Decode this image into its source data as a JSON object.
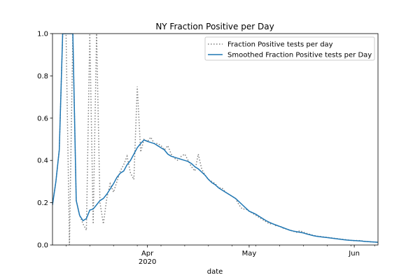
{
  "chart_data": {
    "type": "line",
    "title": "NY Fraction Positive per Day",
    "xlabel": "date",
    "ylabel": "",
    "x_start": "2020-03-04",
    "x_end": "2020-06-08",
    "ylim": [
      0,
      1.0
    ],
    "yticks": [
      0.0,
      0.2,
      0.4,
      0.6,
      0.8,
      1.0
    ],
    "ytick_labels": [
      "0.0",
      "0.2",
      "0.4",
      "0.6",
      "0.8",
      "1.0"
    ],
    "xticks": [
      {
        "date": "2020-04-01",
        "label": "Apr",
        "sublabel": "2020"
      },
      {
        "date": "2020-05-01",
        "label": "May",
        "sublabel": ""
      },
      {
        "date": "2020-06-01",
        "label": "Jun",
        "sublabel": ""
      }
    ],
    "grid": false,
    "legend_position": "top-right",
    "series": [
      {
        "name": "Fraction Positive tests per day",
        "style": "dotted",
        "color": "#7f7f7f",
        "points": [
          [
            "2020-03-04",
            0.19
          ],
          [
            "2020-03-05",
            0.3
          ],
          [
            "2020-03-06",
            0.45
          ],
          [
            "2020-03-07",
            1.0
          ],
          [
            "2020-03-08",
            1.0
          ],
          [
            "2020-03-09",
            0.0
          ],
          [
            "2020-03-10",
            1.0
          ],
          [
            "2020-03-11",
            0.21
          ],
          [
            "2020-03-12",
            0.14
          ],
          [
            "2020-03-13",
            0.1
          ],
          [
            "2020-03-14",
            0.07
          ],
          [
            "2020-03-15",
            1.0
          ],
          [
            "2020-03-16",
            0.1
          ],
          [
            "2020-03-17",
            1.0
          ],
          [
            "2020-03-18",
            0.2
          ],
          [
            "2020-03-19",
            0.1
          ],
          [
            "2020-03-20",
            0.22
          ],
          [
            "2020-03-21",
            0.29
          ],
          [
            "2020-03-22",
            0.25
          ],
          [
            "2020-03-23",
            0.3
          ],
          [
            "2020-03-24",
            0.35
          ],
          [
            "2020-03-25",
            0.38
          ],
          [
            "2020-03-26",
            0.42
          ],
          [
            "2020-03-27",
            0.34
          ],
          [
            "2020-03-28",
            0.31
          ],
          [
            "2020-03-29",
            0.75
          ],
          [
            "2020-03-30",
            0.44
          ],
          [
            "2020-03-31",
            0.5
          ],
          [
            "2020-04-01",
            0.49
          ],
          [
            "2020-04-02",
            0.51
          ],
          [
            "2020-04-03",
            0.48
          ],
          [
            "2020-04-04",
            0.48
          ],
          [
            "2020-04-05",
            0.47
          ],
          [
            "2020-04-06",
            0.45
          ],
          [
            "2020-04-07",
            0.47
          ],
          [
            "2020-04-08",
            0.43
          ],
          [
            "2020-04-09",
            0.41
          ],
          [
            "2020-04-10",
            0.4
          ],
          [
            "2020-04-11",
            0.42
          ],
          [
            "2020-04-12",
            0.43
          ],
          [
            "2020-04-13",
            0.4
          ],
          [
            "2020-04-14",
            0.37
          ],
          [
            "2020-04-15",
            0.35
          ],
          [
            "2020-04-16",
            0.43
          ],
          [
            "2020-04-17",
            0.36
          ],
          [
            "2020-04-18",
            0.33
          ],
          [
            "2020-04-19",
            0.31
          ],
          [
            "2020-04-20",
            0.3
          ],
          [
            "2020-04-21",
            0.29
          ],
          [
            "2020-04-22",
            0.27
          ],
          [
            "2020-04-23",
            0.27
          ],
          [
            "2020-04-24",
            0.25
          ],
          [
            "2020-04-25",
            0.24
          ],
          [
            "2020-04-26",
            0.23
          ],
          [
            "2020-04-27",
            0.22
          ],
          [
            "2020-04-28",
            0.19
          ],
          [
            "2020-04-29",
            0.17
          ],
          [
            "2020-04-30",
            0.17
          ],
          [
            "2020-05-01",
            0.16
          ],
          [
            "2020-05-02",
            0.15
          ],
          [
            "2020-05-03",
            0.14
          ],
          [
            "2020-05-04",
            0.13
          ],
          [
            "2020-05-05",
            0.12
          ],
          [
            "2020-05-06",
            0.11
          ],
          [
            "2020-05-07",
            0.1
          ],
          [
            "2020-05-08",
            0.1
          ],
          [
            "2020-05-09",
            0.09
          ],
          [
            "2020-05-10",
            0.09
          ],
          [
            "2020-05-11",
            0.08
          ],
          [
            "2020-05-12",
            0.075
          ],
          [
            "2020-05-13",
            0.07
          ],
          [
            "2020-05-14",
            0.065
          ],
          [
            "2020-05-15",
            0.06
          ],
          [
            "2020-05-16",
            0.068
          ],
          [
            "2020-05-17",
            0.06
          ],
          [
            "2020-05-18",
            0.055
          ],
          [
            "2020-05-19",
            0.05
          ],
          [
            "2020-05-20",
            0.045
          ],
          [
            "2020-05-21",
            0.042
          ],
          [
            "2020-05-22",
            0.04
          ],
          [
            "2020-05-23",
            0.038
          ],
          [
            "2020-05-24",
            0.036
          ],
          [
            "2020-05-25",
            0.034
          ],
          [
            "2020-05-26",
            0.032
          ],
          [
            "2020-05-27",
            0.03
          ],
          [
            "2020-05-28",
            0.028
          ],
          [
            "2020-05-29",
            0.026
          ],
          [
            "2020-05-30",
            0.024
          ],
          [
            "2020-05-31",
            0.022
          ],
          [
            "2020-06-01",
            0.02
          ],
          [
            "2020-06-02",
            0.022
          ],
          [
            "2020-06-03",
            0.02
          ],
          [
            "2020-06-04",
            0.018
          ],
          [
            "2020-06-05",
            0.016
          ],
          [
            "2020-06-06",
            0.015
          ],
          [
            "2020-06-07",
            0.014
          ],
          [
            "2020-06-08",
            0.013
          ]
        ]
      },
      {
        "name": "Smoothed Fraction Positive tests per Day",
        "style": "solid",
        "color": "#1f77b4",
        "points": [
          [
            "2020-03-04",
            0.19
          ],
          [
            "2020-03-05",
            0.3
          ],
          [
            "2020-03-06",
            0.45
          ],
          [
            "2020-03-07",
            1.0
          ],
          [
            "2020-03-08",
            1.0
          ],
          [
            "2020-03-09",
            1.0
          ],
          [
            "2020-03-10",
            1.0
          ],
          [
            "2020-03-11",
            0.21
          ],
          [
            "2020-03-12",
            0.14
          ],
          [
            "2020-03-13",
            0.115
          ],
          [
            "2020-03-14",
            0.125
          ],
          [
            "2020-03-15",
            0.165
          ],
          [
            "2020-03-16",
            0.17
          ],
          [
            "2020-03-17",
            0.19
          ],
          [
            "2020-03-18",
            0.21
          ],
          [
            "2020-03-19",
            0.22
          ],
          [
            "2020-03-20",
            0.24
          ],
          [
            "2020-03-21",
            0.265
          ],
          [
            "2020-03-22",
            0.29
          ],
          [
            "2020-03-23",
            0.32
          ],
          [
            "2020-03-24",
            0.34
          ],
          [
            "2020-03-25",
            0.35
          ],
          [
            "2020-03-26",
            0.38
          ],
          [
            "2020-03-27",
            0.4
          ],
          [
            "2020-03-28",
            0.43
          ],
          [
            "2020-03-29",
            0.46
          ],
          [
            "2020-03-30",
            0.48
          ],
          [
            "2020-03-31",
            0.497
          ],
          [
            "2020-04-01",
            0.49
          ],
          [
            "2020-04-02",
            0.485
          ],
          [
            "2020-04-03",
            0.48
          ],
          [
            "2020-04-04",
            0.47
          ],
          [
            "2020-04-05",
            0.46
          ],
          [
            "2020-04-06",
            0.45
          ],
          [
            "2020-04-07",
            0.43
          ],
          [
            "2020-04-08",
            0.42
          ],
          [
            "2020-04-09",
            0.415
          ],
          [
            "2020-04-10",
            0.41
          ],
          [
            "2020-04-11",
            0.405
          ],
          [
            "2020-04-12",
            0.4
          ],
          [
            "2020-04-13",
            0.395
          ],
          [
            "2020-04-14",
            0.385
          ],
          [
            "2020-04-15",
            0.37
          ],
          [
            "2020-04-16",
            0.36
          ],
          [
            "2020-04-17",
            0.345
          ],
          [
            "2020-04-18",
            0.33
          ],
          [
            "2020-04-19",
            0.31
          ],
          [
            "2020-04-20",
            0.295
          ],
          [
            "2020-04-21",
            0.285
          ],
          [
            "2020-04-22",
            0.27
          ],
          [
            "2020-04-23",
            0.26
          ],
          [
            "2020-04-24",
            0.25
          ],
          [
            "2020-04-25",
            0.24
          ],
          [
            "2020-04-26",
            0.23
          ],
          [
            "2020-04-27",
            0.22
          ],
          [
            "2020-04-28",
            0.205
          ],
          [
            "2020-04-29",
            0.19
          ],
          [
            "2020-04-30",
            0.175
          ],
          [
            "2020-05-01",
            0.16
          ],
          [
            "2020-05-02",
            0.153
          ],
          [
            "2020-05-03",
            0.145
          ],
          [
            "2020-05-04",
            0.135
          ],
          [
            "2020-05-05",
            0.125
          ],
          [
            "2020-05-06",
            0.115
          ],
          [
            "2020-05-07",
            0.107
          ],
          [
            "2020-05-08",
            0.1
          ],
          [
            "2020-05-09",
            0.094
          ],
          [
            "2020-05-10",
            0.088
          ],
          [
            "2020-05-11",
            0.082
          ],
          [
            "2020-05-12",
            0.076
          ],
          [
            "2020-05-13",
            0.07
          ],
          [
            "2020-05-14",
            0.066
          ],
          [
            "2020-05-15",
            0.063
          ],
          [
            "2020-05-16",
            0.06
          ],
          [
            "2020-05-17",
            0.057
          ],
          [
            "2020-05-18",
            0.052
          ],
          [
            "2020-05-19",
            0.048
          ],
          [
            "2020-05-20",
            0.044
          ],
          [
            "2020-05-21",
            0.041
          ],
          [
            "2020-05-22",
            0.039
          ],
          [
            "2020-05-23",
            0.037
          ],
          [
            "2020-05-24",
            0.035
          ],
          [
            "2020-05-25",
            0.033
          ],
          [
            "2020-05-26",
            0.031
          ],
          [
            "2020-05-27",
            0.029
          ],
          [
            "2020-05-28",
            0.027
          ],
          [
            "2020-05-29",
            0.025
          ],
          [
            "2020-05-30",
            0.023
          ],
          [
            "2020-05-31",
            0.022
          ],
          [
            "2020-06-01",
            0.021
          ],
          [
            "2020-06-02",
            0.02
          ],
          [
            "2020-06-03",
            0.019
          ],
          [
            "2020-06-04",
            0.017
          ],
          [
            "2020-06-05",
            0.016
          ],
          [
            "2020-06-06",
            0.015
          ],
          [
            "2020-06-07",
            0.014
          ],
          [
            "2020-06-08",
            0.013
          ]
        ]
      }
    ]
  }
}
